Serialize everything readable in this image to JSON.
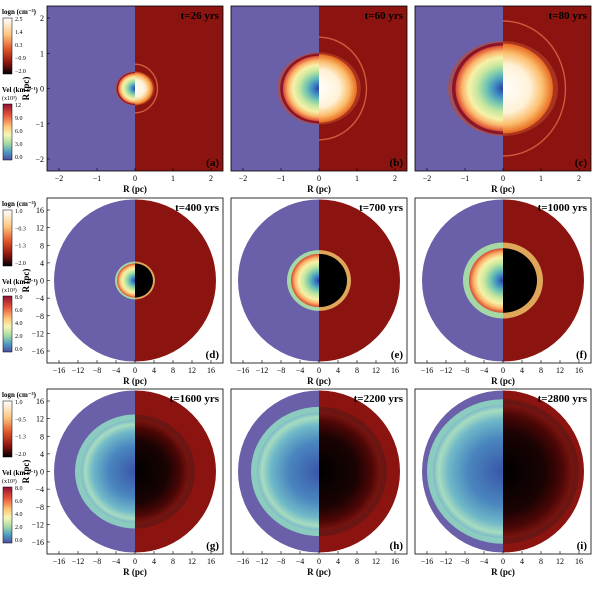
{
  "figure": {
    "panels": [
      {
        "id": "a",
        "label": "(a)",
        "time": "t=26 yrs",
        "scale": "small",
        "xticks": [
          "−2",
          "−1",
          "0",
          "1",
          "2"
        ],
        "yticks": [
          "2",
          "1",
          "0",
          "−1",
          "−2"
        ]
      },
      {
        "id": "b",
        "label": "(b)",
        "time": "t=60 yrs",
        "scale": "small",
        "xticks": [
          "−2",
          "−1",
          "0",
          "1",
          "2"
        ],
        "yticks": []
      },
      {
        "id": "c",
        "label": "(c)",
        "time": "t=80 yrs",
        "scale": "small",
        "xticks": [
          "−2",
          "−1",
          "0",
          "1",
          "2"
        ],
        "yticks": []
      },
      {
        "id": "d",
        "label": "(d)",
        "time": "t=400 yrs",
        "scale": "large",
        "xticks": [
          "−16",
          "−12",
          "−8",
          "−4",
          "0",
          "4",
          "8",
          "12",
          "16"
        ],
        "yticks": [
          "16",
          "12",
          "8",
          "4",
          "0",
          "−4",
          "−8",
          "−12",
          "−16"
        ]
      },
      {
        "id": "e",
        "label": "(e)",
        "time": "t=700 yrs",
        "scale": "large",
        "xticks": [
          "−16",
          "−12",
          "−8",
          "−4",
          "0",
          "4",
          "8",
          "12",
          "16"
        ],
        "yticks": []
      },
      {
        "id": "f",
        "label": "(f)",
        "time": "t=1000 yrs",
        "scale": "large",
        "xticks": [
          "−16",
          "−12",
          "−8",
          "−4",
          "0",
          "4",
          "8",
          "12",
          "16"
        ],
        "yticks": []
      },
      {
        "id": "g",
        "label": "(g)",
        "time": "t=1600 yrs",
        "scale": "large",
        "xticks": [
          "−16",
          "−12",
          "−8",
          "−4",
          "0",
          "4",
          "8",
          "12",
          "16"
        ],
        "yticks": [
          "16",
          "12",
          "8",
          "4",
          "0",
          "−4",
          "−8",
          "−12",
          "−16"
        ]
      },
      {
        "id": "h",
        "label": "(h)",
        "time": "t=2200 yrs",
        "scale": "large",
        "xticks": [
          "−16",
          "−12",
          "−8",
          "−4",
          "0",
          "4",
          "8",
          "12",
          "16"
        ],
        "yticks": []
      },
      {
        "id": "i",
        "label": "(i)",
        "time": "t=2800 yrs",
        "scale": "large",
        "xticks": [
          "−16",
          "−12",
          "−8",
          "−4",
          "0",
          "4",
          "8",
          "12",
          "16"
        ],
        "yticks": []
      }
    ],
    "xlabel": "R (pc)",
    "ylabel": "R (pc)",
    "density_bar": {
      "title": "logn (cm⁻³)",
      "rows": [
        {
          "ticks": [
            "2.5",
            "1.4",
            "0.3",
            "−0.9",
            "−2.0"
          ]
        },
        {
          "ticks": [
            "1.0",
            "−0.3",
            "−1.3",
            "−2.0"
          ]
        },
        {
          "ticks": [
            "1.0",
            "−0.5",
            "−1.3",
            "−2.0"
          ]
        }
      ]
    },
    "velocity_bar": {
      "title": "Vel (km s⁻¹)",
      "exponent": "(x10³)",
      "rows": [
        {
          "ticks": [
            "12",
            "9.0",
            "6.0",
            "3.0",
            "0.0"
          ]
        },
        {
          "ticks": [
            "8.0",
            "6.0",
            "4.0",
            "2.0",
            "0.0"
          ]
        },
        {
          "ticks": [
            "8.0",
            "6.0",
            "4.0",
            "2.0",
            "0.0"
          ]
        }
      ]
    },
    "colors": {
      "background_velocity": "#6a5fa9",
      "ambient_density": "#8b1410"
    }
  }
}
